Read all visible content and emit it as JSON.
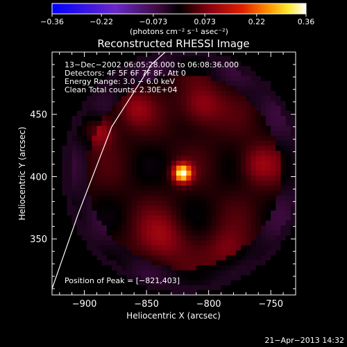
{
  "chart_data": {
    "type": "heatmap",
    "title": "Reconstructed RHESSI Image",
    "xlabel": "Heliocentric X (arcsec)",
    "ylabel": "Heliocentric Y (arcsec)",
    "xlim": [
      -926,
      -730
    ],
    "ylim": [
      305,
      500
    ],
    "x_ticks": [
      -900,
      -850,
      -800,
      -750
    ],
    "x_tick_labels": [
      "−900",
      "−850",
      "−800",
      "−750"
    ],
    "y_ticks": [
      350,
      400,
      450
    ],
    "y_tick_labels": [
      "350",
      "400",
      "450"
    ],
    "colorbar": {
      "range": [
        -0.36,
        0.36
      ],
      "ticks": [
        -0.36,
        -0.22,
        -0.073,
        0.073,
        0.22,
        0.36
      ],
      "tick_labels": [
        "−0.36",
        "−0.22",
        "−0.073",
        "0.073",
        "0.22",
        "0.36"
      ],
      "units": "(photons cm⁻² s⁻¹ asec⁻²)",
      "colormap": "blue-purple-red-yellow-white"
    },
    "annotations": [
      "13−Dec−2002 06:05:28.000 to 06:08:36.000",
      "Detectors: 4F 5F 6F 7F 8F, Att 0",
      "Energy Range: 3.0 − 6.0 keV",
      "Clean     Total counts: 2.30E+04"
    ],
    "peak_label": "Position of Peak = [−821,403]",
    "peak": {
      "x": -821,
      "y": 403,
      "value": 0.36
    },
    "limb_curve": [
      [
        -926,
        310
      ],
      [
        -905,
        370
      ],
      [
        -878,
        440
      ],
      [
        -846,
        490
      ],
      [
        -835,
        500
      ]
    ],
    "sources": [
      {
        "x": -821,
        "y": 403,
        "sigma": 5,
        "value": 0.34
      },
      {
        "x": -888,
        "y": 437,
        "sigma": 9,
        "value": 0.1
      },
      {
        "x": -806,
        "y": 457,
        "sigma": 12,
        "value": 0.09
      },
      {
        "x": -760,
        "y": 410,
        "sigma": 11,
        "value": 0.08
      },
      {
        "x": -838,
        "y": 350,
        "sigma": 14,
        "value": 0.08
      },
      {
        "x": -784,
        "y": 340,
        "sigma": 12,
        "value": 0.07
      },
      {
        "x": -860,
        "y": 455,
        "sigma": 10,
        "value": 0.07
      }
    ],
    "background_level": 0.02,
    "disk_boundary_radius": 92
  },
  "footer": {
    "date_stamp": "21−Apr−2013 14:32"
  }
}
